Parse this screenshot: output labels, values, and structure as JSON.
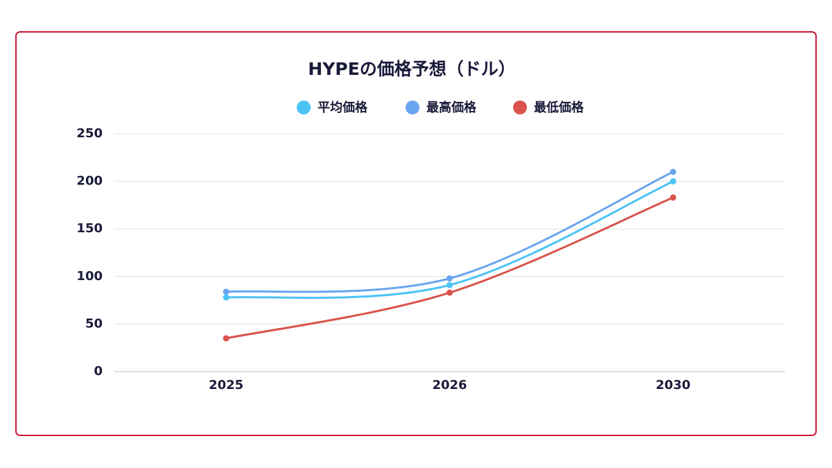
{
  "chart_data": {
    "type": "line",
    "title": "HYPEの価格予想（ドル）",
    "categories": [
      "2025",
      "2026",
      "2030"
    ],
    "series": [
      {
        "name": "平均価格",
        "color": "#4cc3f5",
        "values": [
          78,
          91,
          200
        ]
      },
      {
        "name": "最高価格",
        "color": "#6aa5f0",
        "values": [
          84,
          98,
          210
        ]
      },
      {
        "name": "最低価格",
        "color": "#d9534a",
        "values": [
          35,
          83,
          183
        ]
      }
    ],
    "ylim": [
      0,
      250
    ],
    "yticks": [
      0,
      50,
      100,
      150,
      200,
      250
    ],
    "grid": true,
    "legend": "top"
  }
}
